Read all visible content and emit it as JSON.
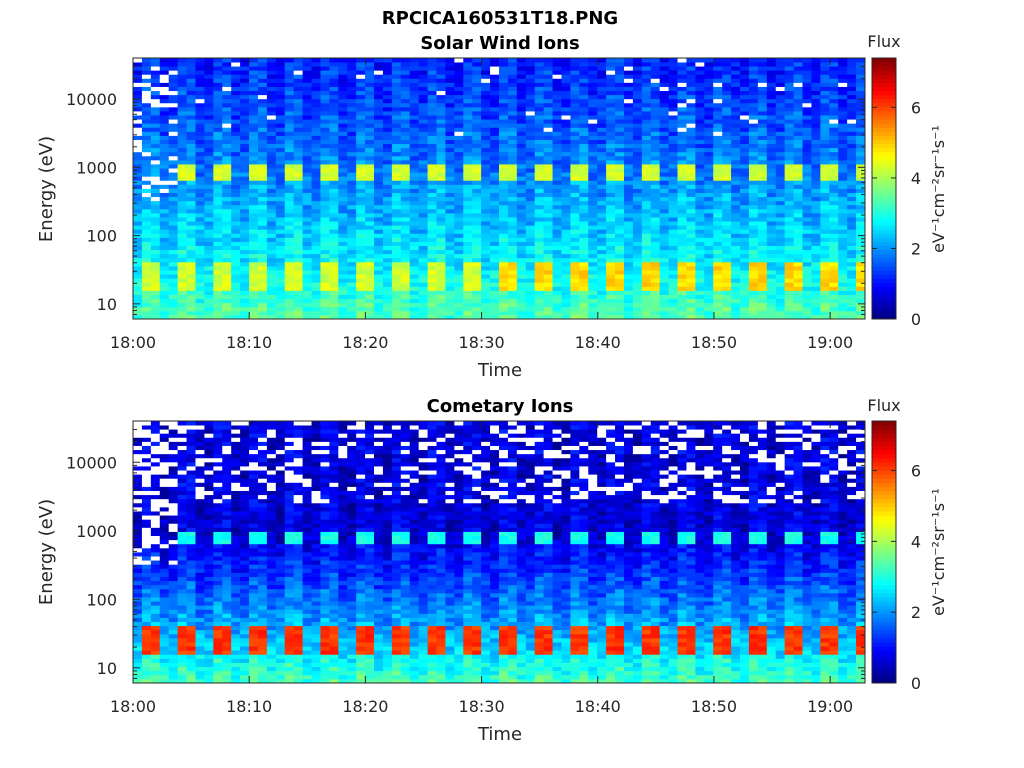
{
  "figure": {
    "title": "RPCICA160531T18.PNG"
  },
  "chart_data": [
    {
      "type": "heatmap",
      "title": "Solar Wind Ions",
      "xlabel": "Time",
      "ylabel": "Energy (eV)",
      "x_tick_labels": [
        "18:00",
        "18:10",
        "18:20",
        "18:30",
        "18:40",
        "18:50",
        "19:00"
      ],
      "x_range_minutes": [
        0,
        63
      ],
      "y_scale": "log",
      "y_range": [
        6,
        40000
      ],
      "y_tick_labels": [
        "10",
        "100",
        "1000",
        "10000"
      ],
      "colormap": "jet",
      "colorbar": {
        "title": "Flux",
        "units": "eV⁻¹cm⁻²sr⁻¹s⁻¹",
        "range": [
          0,
          7.4
        ],
        "tick_labels": [
          "0",
          "2",
          "4",
          "6"
        ]
      },
      "features": [
        {
          "energy_band_eV": [
            650,
            1100
          ],
          "peak_flux": 4.3
        },
        {
          "energy_band_eV": [
            15,
            40
          ],
          "peak_flux": 4.9
        }
      ]
    },
    {
      "type": "heatmap",
      "title": "Cometary Ions",
      "xlabel": "Time",
      "ylabel": "Energy (eV)",
      "x_tick_labels": [
        "18:00",
        "18:10",
        "18:20",
        "18:30",
        "18:40",
        "18:50",
        "19:00"
      ],
      "x_range_minutes": [
        0,
        63
      ],
      "y_scale": "log",
      "y_range": [
        6,
        40000
      ],
      "y_tick_labels": [
        "10",
        "100",
        "1000",
        "10000"
      ],
      "colormap": "jet",
      "colorbar": {
        "title": "Flux",
        "units": "eV⁻¹cm⁻²sr⁻¹s⁻¹",
        "range": [
          0,
          7.4
        ],
        "tick_labels": [
          "0",
          "2",
          "4",
          "6"
        ]
      },
      "features": [
        {
          "energy_band_eV": [
            650,
            1000
          ],
          "peak_flux": 2.9
        },
        {
          "energy_band_eV": [
            15,
            40
          ],
          "peak_flux": 6.1
        }
      ]
    }
  ]
}
